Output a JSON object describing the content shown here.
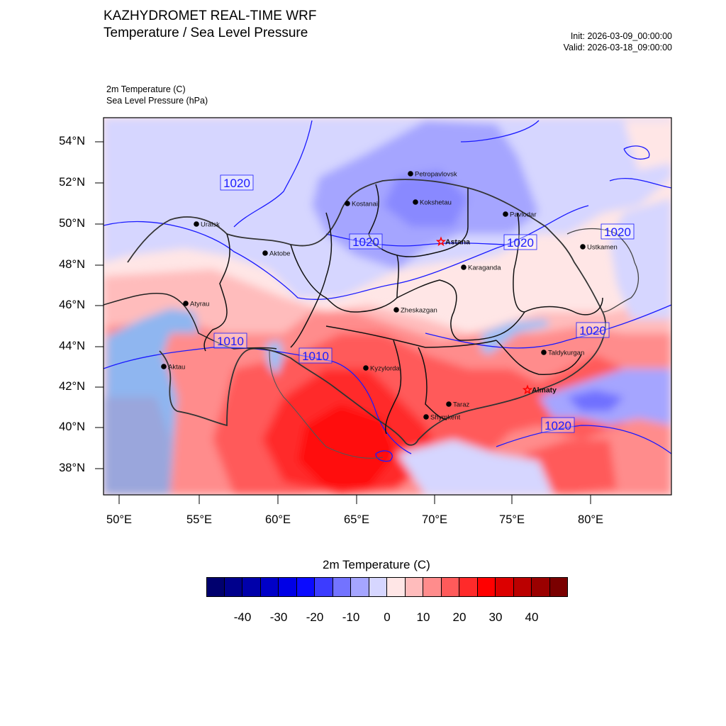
{
  "header": {
    "title_line1": "KAZHYDROMET REAL-TIME WRF",
    "title_line2": "Temperature / Sea Level Pressure",
    "init": "Init: 2026-03-09_00:00:00",
    "valid": "Valid: 2026-03-18_09:00:00",
    "field1": "2m Temperature   (C)",
    "field2": "Sea Level Pressure   (hPa)"
  },
  "axes": {
    "lat_labels": [
      "54°N",
      "52°N",
      "50°N",
      "48°N",
      "46°N",
      "44°N",
      "42°N",
      "40°N",
      "38°N"
    ],
    "lon_labels": [
      "50°E",
      "55°E",
      "60°E",
      "65°E",
      "70°E",
      "75°E",
      "80°E"
    ]
  },
  "cities": [
    {
      "name": "Petropavlovsk",
      "capital": false
    },
    {
      "name": "Kostanai",
      "capital": false
    },
    {
      "name": "Kokshetau",
      "capital": false
    },
    {
      "name": "Pavlodar",
      "capital": false
    },
    {
      "name": "Uralsk",
      "capital": false
    },
    {
      "name": "Ustkamen",
      "capital": false
    },
    {
      "name": "Aktobe",
      "capital": false
    },
    {
      "name": "Astana",
      "capital": true
    },
    {
      "name": "Karaganda",
      "capital": false
    },
    {
      "name": "Atyrau",
      "capital": false
    },
    {
      "name": "Zheskazgan",
      "capital": false
    },
    {
      "name": "Taldykurgan",
      "capital": false
    },
    {
      "name": "Aktau",
      "capital": false
    },
    {
      "name": "Kyzylorda",
      "capital": false
    },
    {
      "name": "Almaty",
      "capital": true
    },
    {
      "name": "Taraz",
      "capital": false
    },
    {
      "name": "Shymkent",
      "capital": false
    }
  ],
  "isobar_labels": [
    "1020",
    "1020",
    "1020",
    "1020",
    "1020",
    "1020",
    "1010",
    "1010"
  ],
  "colorbar": {
    "title": "2m Temperature  (C)",
    "ticks": [
      "-40",
      "-30",
      "-20",
      "-10",
      "0",
      "10",
      "20",
      "30",
      "40"
    ],
    "colors": [
      "#00006e",
      "#00008c",
      "#0000aa",
      "#0000c8",
      "#0000e6",
      "#0b0bff",
      "#3c3cff",
      "#7373ff",
      "#a5a5ff",
      "#d6d6ff",
      "#ffe6e6",
      "#ffbcbc",
      "#ff8c8c",
      "#ff5a5a",
      "#ff2a2a",
      "#ff0000",
      "#dc0000",
      "#bb0000",
      "#9a0000",
      "#7a0000"
    ]
  },
  "legend_colors": {
    "isobar": "#1a1aff",
    "city_marker": "#000000",
    "capital_marker": "#ff0000"
  }
}
